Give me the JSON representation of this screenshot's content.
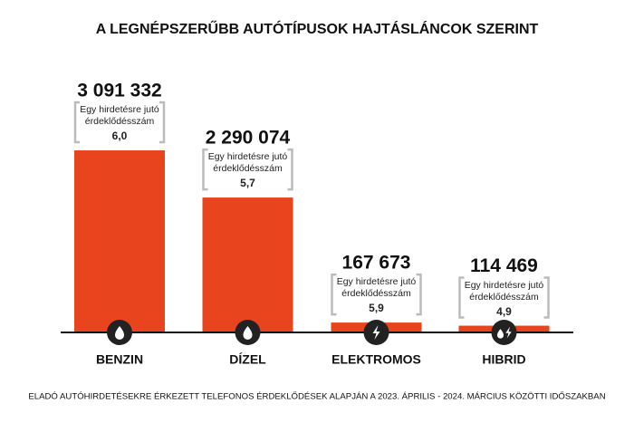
{
  "chart_data": {
    "type": "bar",
    "title": "A LEGNÉPSZERŰBB AUTÓTÍPUSOK HAJTÁSLÁNCOK SZERINT",
    "categories": [
      "BENZIN",
      "DÍZEL",
      "ELEKTROMOS",
      "HIBRID"
    ],
    "values": [
      3091332,
      2290074,
      167673,
      114469
    ],
    "value_labels": [
      "3 091 332",
      "2 290 074",
      "167 673",
      "114 469"
    ],
    "color": "#e8451e",
    "ylim": [
      0,
      3100000
    ],
    "interest_label": "Egy hirdetésre jutó érdeklődésszám",
    "interest": {
      "values": [
        6.0,
        5.7,
        5.9,
        4.9
      ],
      "value_labels": [
        "6,0",
        "5,7",
        "5,9",
        "4,9"
      ]
    },
    "footnote": "ELADÓ AUTÓHIRDETÉSEKRE ÉRKEZETT TELEFONOS ÉRDEKLŐDÉSEK ALAPJÁN A 2023. ÁPRILIS - 2024. MÁRCIUS KÖZÖTTI IDŐSZAKBAN"
  }
}
